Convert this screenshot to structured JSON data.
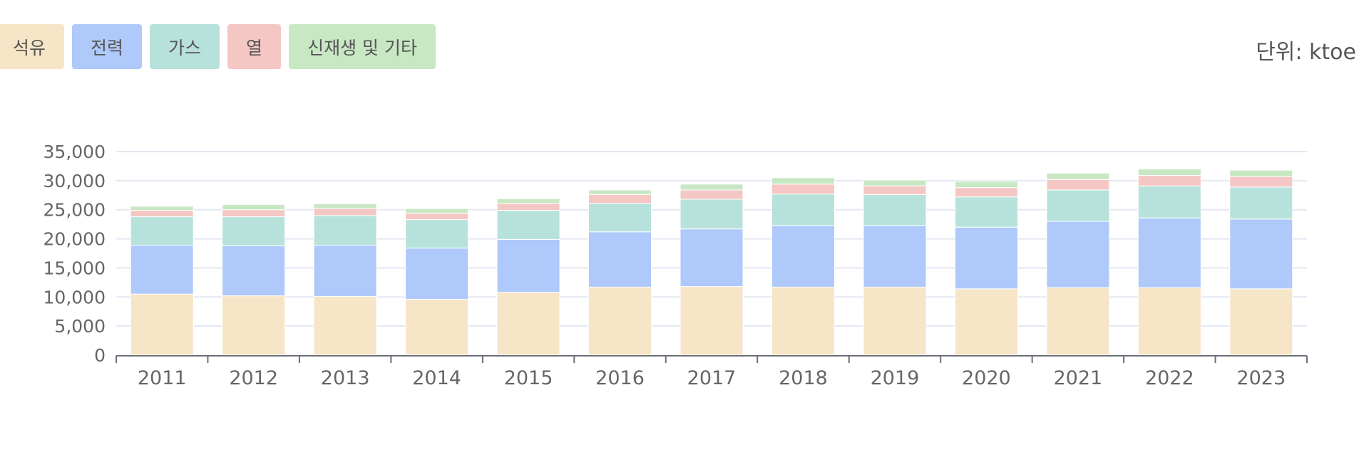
{
  "legend": {
    "items": [
      {
        "label": "석유",
        "color": "#f7e5c8"
      },
      {
        "label": "전력",
        "color": "#aec9fa"
      },
      {
        "label": "가스",
        "color": "#b7e2dc"
      },
      {
        "label": "열",
        "color": "#f5c7c4"
      },
      {
        "label": "신재생 및 기타",
        "color": "#c8e8c3"
      }
    ]
  },
  "unit_label": "단위: ktoe",
  "chart_data": {
    "type": "bar",
    "stacked": true,
    "categories": [
      "2011",
      "2012",
      "2013",
      "2014",
      "2015",
      "2016",
      "2017",
      "2018",
      "2019",
      "2020",
      "2021",
      "2022",
      "2023"
    ],
    "series": [
      {
        "name": "석유",
        "color": "#f7e5c8",
        "values": [
          10500,
          10200,
          10100,
          9600,
          10800,
          11700,
          11800,
          11700,
          11700,
          11400,
          11600,
          11600,
          11400
        ]
      },
      {
        "name": "전력",
        "color": "#aec9fa",
        "values": [
          8400,
          8600,
          8800,
          8800,
          9100,
          9500,
          9900,
          10600,
          10600,
          10600,
          11400,
          12000,
          12000
        ]
      },
      {
        "name": "가스",
        "color": "#b7e2dc",
        "values": [
          4900,
          5000,
          5100,
          4900,
          5000,
          4900,
          5100,
          5400,
          5300,
          5200,
          5400,
          5500,
          5500
        ]
      },
      {
        "name": "열",
        "color": "#f5c7c4",
        "values": [
          1100,
          1200,
          1200,
          1100,
          1200,
          1500,
          1600,
          1700,
          1500,
          1600,
          1800,
          1800,
          1800
        ]
      },
      {
        "name": "신재생 및 기타",
        "color": "#c8e8c3",
        "values": [
          700,
          900,
          800,
          800,
          800,
          800,
          1000,
          1100,
          1000,
          1100,
          1100,
          1100,
          1100
        ]
      }
    ],
    "yticks": [
      "35,000",
      "30,000",
      "25,000",
      "20,000",
      "15,000",
      "10,000",
      "5,000",
      "0"
    ],
    "ylim": [
      0,
      35000
    ],
    "grid": true,
    "legend_position": "top-left"
  }
}
